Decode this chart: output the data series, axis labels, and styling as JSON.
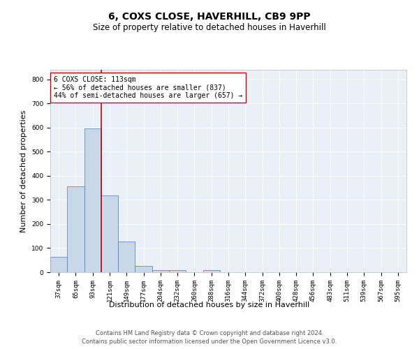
{
  "title1": "6, COXS CLOSE, HAVERHILL, CB9 9PP",
  "title2": "Size of property relative to detached houses in Haverhill",
  "xlabel": "Distribution of detached houses by size in Haverhill",
  "ylabel": "Number of detached properties",
  "categories": [
    "37sqm",
    "65sqm",
    "93sqm",
    "121sqm",
    "149sqm",
    "177sqm",
    "204sqm",
    "232sqm",
    "260sqm",
    "288sqm",
    "316sqm",
    "344sqm",
    "372sqm",
    "400sqm",
    "428sqm",
    "456sqm",
    "483sqm",
    "511sqm",
    "539sqm",
    "567sqm",
    "595sqm"
  ],
  "bar_heights": [
    65,
    357,
    597,
    318,
    128,
    25,
    10,
    8,
    0,
    10,
    0,
    0,
    0,
    0,
    0,
    0,
    0,
    0,
    0,
    0,
    0
  ],
  "bar_color": "#c8d8e8",
  "bar_edge_color": "#4a7ab5",
  "vline_color": "#cc0000",
  "annotation_text": "6 COXS CLOSE: 113sqm\n← 56% of detached houses are smaller (837)\n44% of semi-detached houses are larger (657) →",
  "annotation_box_color": "#ffffff",
  "annotation_box_edge": "#cc0000",
  "ylim": [
    0,
    840
  ],
  "yticks": [
    0,
    100,
    200,
    300,
    400,
    500,
    600,
    700,
    800
  ],
  "plot_bg_color": "#eaf0f8",
  "footer1": "Contains HM Land Registry data © Crown copyright and database right 2024.",
  "footer2": "Contains public sector information licensed under the Open Government Licence v3.0.",
  "title1_fontsize": 10,
  "title2_fontsize": 8.5,
  "ylabel_fontsize": 8,
  "xlabel_fontsize": 8,
  "tick_fontsize": 6.5,
  "annotation_fontsize": 7,
  "footer_fontsize": 6
}
